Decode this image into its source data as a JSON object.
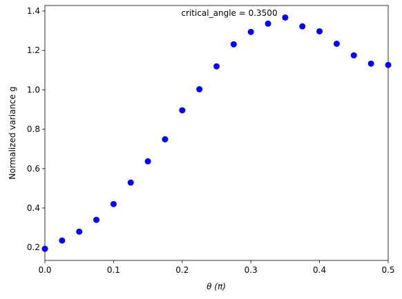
{
  "chart_data": {
    "type": "scatter",
    "x_label": "θ (π)",
    "y_label": "Normalized variance g",
    "annotation": "critical_angle = 0.3500",
    "x": [
      0,
      0.025,
      0.05,
      0.075,
      0.1,
      0.125,
      0.15,
      0.175,
      0.2,
      0.225,
      0.25,
      0.275,
      0.3,
      0.325,
      0.35,
      0.375,
      0.4,
      0.425,
      0.45,
      0.475,
      0.5
    ],
    "series": [
      {
        "color": "#0000ff",
        "values": [
          0.193,
          0.235,
          0.28,
          0.34,
          0.42,
          0.529,
          0.637,
          0.749,
          0.896,
          1.003,
          1.119,
          1.231,
          1.294,
          1.336,
          1.367,
          1.322,
          1.297,
          1.234,
          1.175,
          1.133,
          1.126
        ]
      }
    ],
    "xlim": [
      0,
      0.5
    ],
    "ylim": [
      0.134,
      1.428
    ],
    "xticks": [
      {
        "value": 0,
        "label": "0.0"
      },
      0.1,
      0.2,
      0.3,
      0.4,
      0.5
    ],
    "yticks": [
      0.2,
      0.4,
      0.6,
      0.8,
      {
        "value": 1,
        "label": "1.0"
      },
      1.2,
      1.4
    ],
    "grid": false
  }
}
